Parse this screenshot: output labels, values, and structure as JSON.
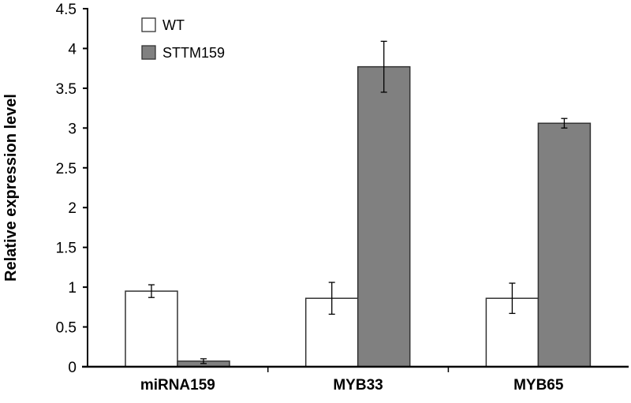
{
  "chart_data": {
    "type": "bar",
    "title": "",
    "xlabel": "",
    "ylabel": "Relative expression level",
    "ylim": [
      0,
      4.5
    ],
    "yticks": [
      "0",
      "0.5",
      "1",
      "1.5",
      "2",
      "2.5",
      "3",
      "3.5",
      "4",
      "4.5"
    ],
    "categories": [
      "miRNA159",
      "MYB33",
      "MYB65"
    ],
    "series": [
      {
        "name": "WT",
        "color": "#ffffff",
        "values": [
          0.95,
          0.86,
          0.86
        ],
        "errors": [
          0.08,
          0.2,
          0.19
        ]
      },
      {
        "name": "STTM159",
        "color": "#808080",
        "values": [
          0.07,
          3.77,
          3.06
        ],
        "errors": [
          0.03,
          0.32,
          0.06
        ]
      }
    ],
    "legend_position": "top-left",
    "grid": false
  }
}
